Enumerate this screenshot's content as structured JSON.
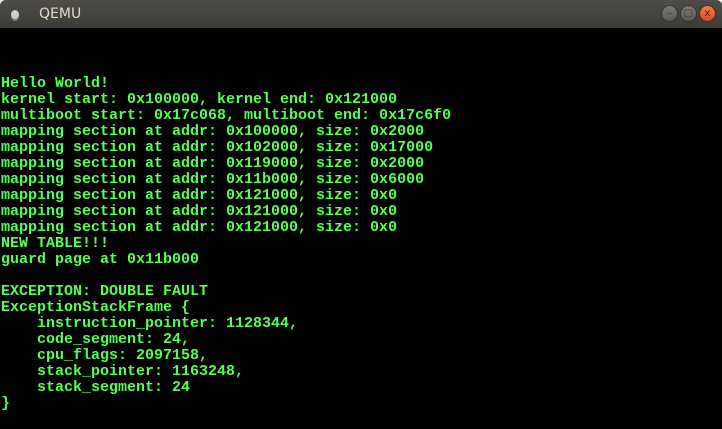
{
  "window": {
    "title": "QEMU",
    "controls": {
      "minimize": "–",
      "maximize": "□",
      "close": "x"
    }
  },
  "console": {
    "lines": [
      "",
      "",
      "",
      "Hello World!",
      "kernel start: 0x100000, kernel end: 0x121000",
      "multiboot start: 0x17c068, multiboot end: 0x17c6f0",
      "mapping section at addr: 0x100000, size: 0x2000",
      "mapping section at addr: 0x102000, size: 0x17000",
      "mapping section at addr: 0x119000, size: 0x2000",
      "mapping section at addr: 0x11b000, size: 0x6000",
      "mapping section at addr: 0x121000, size: 0x0",
      "mapping section at addr: 0x121000, size: 0x0",
      "mapping section at addr: 0x121000, size: 0x0",
      "NEW TABLE!!!",
      "guard page at 0x11b000",
      "",
      "EXCEPTION: DOUBLE FAULT",
      "ExceptionStackFrame {",
      "    instruction_pointer: 1128344,",
      "    code_segment: 24,",
      "    cpu_flags: 2097158,",
      "    stack_pointer: 1163248,",
      "    stack_segment: 24",
      "}"
    ]
  },
  "colors": {
    "text": "#55ff55",
    "background": "#000000"
  }
}
